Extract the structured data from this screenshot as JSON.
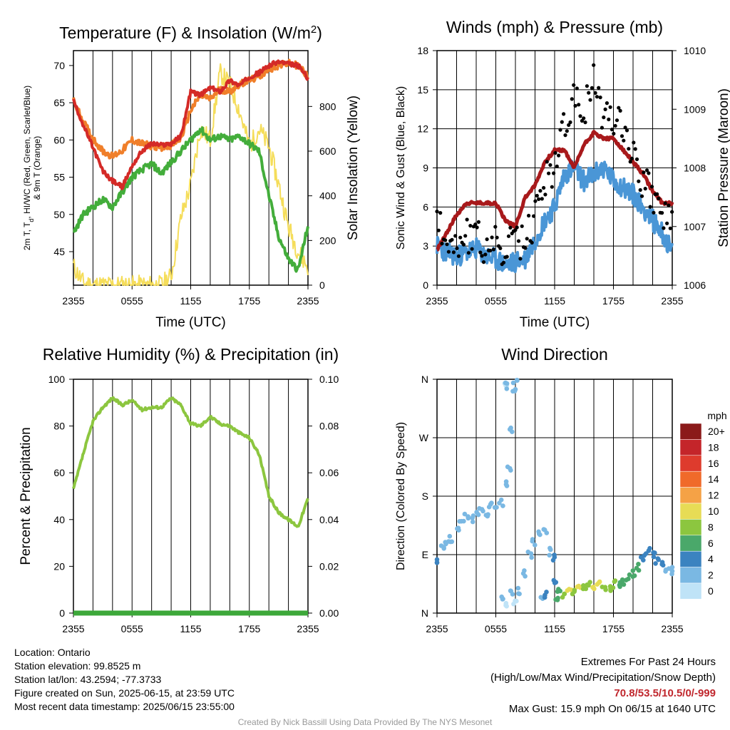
{
  "colors": {
    "temp": "#d42a27",
    "dewpoint": "#43ad3b",
    "heat_index": "#f07f2a",
    "temp_9m": "#f07f2a",
    "insolation": "#f5dd5a",
    "wind": "#4a96d6",
    "gust": "#000000",
    "pressure": "#a8191b",
    "humidity": "#8cc63f",
    "precip": "#3da83a",
    "extremes": "#c0272d",
    "credit": "#999999"
  },
  "x_ticks": [
    "2355",
    "0555",
    "1155",
    "1755",
    "2355"
  ],
  "chart_data": [
    {
      "type": "line",
      "id": "temperature",
      "title": "Temperature (F) & Insolation (W/m²)",
      "title_main": "Temperature (F) & Insolation (W/m",
      "title_sup": "2",
      "title_end": ")",
      "xlabel": "Time (UTC)",
      "ylabel": "2m T, T",
      "ylabel_sub": "d",
      "ylabel_rest": ", HI/WC (Red, Green, Scarlet/Blue)",
      "ylabel2": "& 9m T (Orange)",
      "y2label": "Solar Insolation (Yellow)",
      "yticks": [
        45,
        50,
        55,
        60,
        65,
        70
      ],
      "y2ticks": [
        0,
        200,
        400,
        600,
        800
      ],
      "ylim": [
        40.5,
        72
      ],
      "y2lim": [
        0,
        1050
      ],
      "x": [
        0,
        1,
        2,
        3,
        4,
        5,
        6,
        7,
        8,
        9,
        10,
        11,
        12,
        13,
        14,
        15,
        16,
        17,
        18,
        19,
        20,
        21,
        22,
        23,
        24
      ],
      "series": [
        {
          "role": "temp_9m",
          "values": [
            65.3,
            62.5,
            60.2,
            58.5,
            57.8,
            58.6,
            60.0,
            59.5,
            59.2,
            59.0,
            59.3,
            60.2,
            64.0,
            66.0,
            65.5,
            66.8,
            66.5,
            67.5,
            68.0,
            68.5,
            69.5,
            70.0,
            70.3,
            70.0,
            68.5
          ]
        },
        {
          "role": "temp",
          "values": [
            65.3,
            62.0,
            59.0,
            55.8,
            54.5,
            53.7,
            56.5,
            58.5,
            59.5,
            59.3,
            59.5,
            60.5,
            66.5,
            66.0,
            67.0,
            66.5,
            68.0,
            67.3,
            68.5,
            69.0,
            70.0,
            70.5,
            70.2,
            70.0,
            68.3
          ]
        },
        {
          "role": "dewpoint",
          "values": [
            47.5,
            50.0,
            51.0,
            52.0,
            51.0,
            53.0,
            55.0,
            56.0,
            56.8,
            55.5,
            57.0,
            58.5,
            60.0,
            61.5,
            60.0,
            60.5,
            60.0,
            60.5,
            59.5,
            58.5,
            52.5,
            47.0,
            44.0,
            42.5,
            48.5
          ]
        },
        {
          "role": "insolation",
          "values": [
            85,
            10,
            0,
            0,
            0,
            0,
            0,
            0,
            0,
            0,
            40,
            300,
            450,
            700,
            650,
            950,
            900,
            780,
            620,
            700,
            620,
            450,
            260,
            150,
            80
          ]
        }
      ]
    },
    {
      "type": "line",
      "id": "winds",
      "title": "Winds (mph) & Pressure (mb)",
      "xlabel": "Time (UTC)",
      "ylabel": "Sonic Wind & Gust (Blue, Black)",
      "y2label": "Station Pressure (Maroon)",
      "yticks": [
        0,
        3,
        6,
        9,
        12,
        15,
        18
      ],
      "y2ticks": [
        1006,
        1007,
        1008,
        1009,
        1010
      ],
      "ylim": [
        0,
        18
      ],
      "y2lim": [
        1006,
        1010
      ],
      "x": [
        0,
        1,
        2,
        3,
        4,
        5,
        6,
        7,
        8,
        9,
        10,
        11,
        12,
        13,
        14,
        15,
        16,
        17,
        18,
        19,
        20,
        21,
        22,
        23,
        24
      ],
      "series": [
        {
          "role": "wind",
          "values": [
            3.0,
            2.5,
            2.2,
            2.5,
            2.8,
            2.2,
            2.0,
            1.5,
            1.8,
            2.0,
            3.5,
            5.0,
            6.0,
            8.5,
            9.0,
            8.0,
            8.5,
            9.0,
            8.0,
            7.5,
            7.0,
            6.0,
            5.0,
            4.0,
            2.5
          ]
        },
        {
          "role": "gust",
          "values": [
            4.5,
            4.0,
            3.0,
            4.0,
            3.5,
            3.0,
            3.0,
            2.5,
            3.5,
            3.0,
            5.5,
            8.0,
            9.0,
            12.5,
            14.0,
            13.5,
            15.5,
            13.0,
            13.0,
            12.5,
            10.0,
            8.0,
            7.0,
            5.5,
            4.5
          ]
        },
        {
          "role": "pressure",
          "values": [
            1006.6,
            1006.9,
            1007.2,
            1007.4,
            1007.4,
            1007.4,
            1007.4,
            1007.1,
            1007.0,
            1007.5,
            1007.7,
            1008.1,
            1008.3,
            1008.3,
            1008.0,
            1008.4,
            1008.6,
            1008.5,
            1008.5,
            1008.3,
            1008.1,
            1007.9,
            1007.6,
            1007.4,
            1007.4
          ]
        }
      ]
    },
    {
      "type": "line",
      "id": "humidity",
      "title": "Relative Humidity (%) & Precipitation (in)",
      "xlabel": "",
      "ylabel": "Percent & Precipitation",
      "yticks": [
        0,
        20,
        40,
        60,
        80,
        100
      ],
      "y2ticks": [
        "0.00",
        "0.02",
        "0.04",
        "0.06",
        "0.08",
        "0.10"
      ],
      "ylim": [
        0,
        100
      ],
      "y2lim": [
        0,
        0.1
      ],
      "x": [
        0,
        1,
        2,
        3,
        4,
        5,
        6,
        7,
        8,
        9,
        10,
        11,
        12,
        13,
        14,
        15,
        16,
        17,
        18,
        19,
        20,
        21,
        22,
        23,
        24
      ],
      "series": [
        {
          "role": "humidity",
          "values": [
            53,
            68,
            82,
            88,
            92,
            89,
            91,
            87,
            88,
            88,
            92,
            89,
            81,
            80,
            84,
            81,
            80,
            77,
            75,
            68,
            50,
            43,
            40,
            37,
            49
          ]
        },
        {
          "role": "precip",
          "values": [
            0,
            0,
            0,
            0,
            0,
            0,
            0,
            0,
            0,
            0,
            0,
            0,
            0,
            0,
            0,
            0,
            0,
            0,
            0,
            0,
            0,
            0,
            0,
            0,
            0
          ]
        }
      ]
    },
    {
      "type": "scatter",
      "id": "direction",
      "title": "Wind Direction",
      "xlabel": "",
      "ylabel": "Direction (Colored By Speed)",
      "yticks": [
        "N",
        "E",
        "S",
        "W",
        "N"
      ],
      "ylim": [
        0,
        360
      ],
      "legend_title": "mph",
      "legend_labels": [
        "20+",
        "18",
        "16",
        "14",
        "12",
        "10",
        "8",
        "6",
        "4",
        "2",
        "0"
      ],
      "legend_colors": [
        "#8b1a1a",
        "#c4252a",
        "#de3b2d",
        "#f06a2a",
        "#f5a246",
        "#e7dc55",
        "#8cc63f",
        "#4aa86a",
        "#3b83c0",
        "#7ab8e3",
        "#bfe3f7"
      ],
      "points": [
        {
          "x": 0.0,
          "dir": 80,
          "speed": 3
        },
        {
          "x": 0.5,
          "dir": 100,
          "speed": 2
        },
        {
          "x": 1.0,
          "dir": 105,
          "speed": 2
        },
        {
          "x": 1.5,
          "dir": 115,
          "speed": 2
        },
        {
          "x": 2.0,
          "dir": 130,
          "speed": 2
        },
        {
          "x": 2.5,
          "dir": 140,
          "speed": 2
        },
        {
          "x": 3.0,
          "dir": 150,
          "speed": 2
        },
        {
          "x": 3.5,
          "dir": 145,
          "speed": 2
        },
        {
          "x": 4.0,
          "dir": 155,
          "speed": 2
        },
        {
          "x": 4.5,
          "dir": 160,
          "speed": 2
        },
        {
          "x": 5.0,
          "dir": 150,
          "speed": 2
        },
        {
          "x": 5.5,
          "dir": 165,
          "speed": 2
        },
        {
          "x": 6.0,
          "dir": 160,
          "speed": 2
        },
        {
          "x": 6.5,
          "dir": 170,
          "speed": 1
        },
        {
          "x": 7.0,
          "dir": 355,
          "speed": 0
        },
        {
          "x": 7.2,
          "dir": 350,
          "speed": 1
        },
        {
          "x": 7.8,
          "dir": 345,
          "speed": 1
        },
        {
          "x": 8.0,
          "dir": 355,
          "speed": 1
        },
        {
          "x": 7.5,
          "dir": 280,
          "speed": 1
        },
        {
          "x": 7.3,
          "dir": 220,
          "speed": 1
        },
        {
          "x": 7.2,
          "dir": 200,
          "speed": 1
        },
        {
          "x": 6.8,
          "dir": 20,
          "speed": 1
        },
        {
          "x": 7.0,
          "dir": 10,
          "speed": 0
        },
        {
          "x": 7.6,
          "dir": 30,
          "speed": 1
        },
        {
          "x": 8.0,
          "dir": 15,
          "speed": 0
        },
        {
          "x": 8.5,
          "dir": 35,
          "speed": 1
        },
        {
          "x": 9.0,
          "dir": 60,
          "speed": 1
        },
        {
          "x": 9.5,
          "dir": 90,
          "speed": 2
        },
        {
          "x": 9.8,
          "dir": 110,
          "speed": 2
        },
        {
          "x": 10.5,
          "dir": 120,
          "speed": 2
        },
        {
          "x": 11.0,
          "dir": 125,
          "speed": 2
        },
        {
          "x": 11.5,
          "dir": 95,
          "speed": 2
        },
        {
          "x": 10.8,
          "dir": 20,
          "speed": 1
        },
        {
          "x": 11.2,
          "dir": 30,
          "speed": 3
        },
        {
          "x": 11.8,
          "dir": 85,
          "speed": 3
        },
        {
          "x": 12.0,
          "dir": 45,
          "speed": 4
        },
        {
          "x": 12.3,
          "dir": 20,
          "speed": 6
        },
        {
          "x": 12.5,
          "dir": 35,
          "speed": 5
        },
        {
          "x": 13.0,
          "dir": 30,
          "speed": 7
        },
        {
          "x": 13.5,
          "dir": 40,
          "speed": 9
        },
        {
          "x": 14.0,
          "dir": 35,
          "speed": 8
        },
        {
          "x": 14.5,
          "dir": 45,
          "speed": 10
        },
        {
          "x": 15.0,
          "dir": 38,
          "speed": 7
        },
        {
          "x": 15.5,
          "dir": 42,
          "speed": 8
        },
        {
          "x": 16.0,
          "dir": 35,
          "speed": 9
        },
        {
          "x": 16.5,
          "dir": 45,
          "speed": 10
        },
        {
          "x": 17.0,
          "dir": 40,
          "speed": 8
        },
        {
          "x": 17.5,
          "dir": 38,
          "speed": 7
        },
        {
          "x": 18.0,
          "dir": 45,
          "speed": 8
        },
        {
          "x": 18.5,
          "dir": 42,
          "speed": 6
        },
        {
          "x": 19.0,
          "dir": 50,
          "speed": 6
        },
        {
          "x": 19.5,
          "dir": 55,
          "speed": 5
        },
        {
          "x": 20.0,
          "dir": 60,
          "speed": 6
        },
        {
          "x": 20.5,
          "dir": 70,
          "speed": 5
        },
        {
          "x": 21.0,
          "dir": 85,
          "speed": 4
        },
        {
          "x": 21.5,
          "dir": 95,
          "speed": 4
        },
        {
          "x": 22.0,
          "dir": 90,
          "speed": 4
        },
        {
          "x": 22.5,
          "dir": 80,
          "speed": 3
        },
        {
          "x": 23.0,
          "dir": 75,
          "speed": 3
        },
        {
          "x": 23.5,
          "dir": 70,
          "speed": 2
        },
        {
          "x": 24.0,
          "dir": 65,
          "speed": 2
        }
      ]
    }
  ],
  "info": {
    "location": "Location: Ontario",
    "elevation": "Station elevation: 99.8525 m",
    "latlon": "Station lat/lon: 43.2594; -77.3733",
    "created": "Figure created on Sun, 2025-06-15, at 23:59 UTC",
    "recent": "Most recent data timestamp: 2025/06/15 23:55:00"
  },
  "extremes": {
    "title": "Extremes For Past 24 Hours",
    "subtitle": "(High/Low/Max Wind/Precipitation/Snow Depth)",
    "values": "70.8/53.5/10.5/0/-999",
    "max_gust": "Max Gust: 15.9 mph On 06/15 at 1640 UTC"
  },
  "credit": "Created By Nick Bassill Using Data Provided By The NYS Mesonet"
}
